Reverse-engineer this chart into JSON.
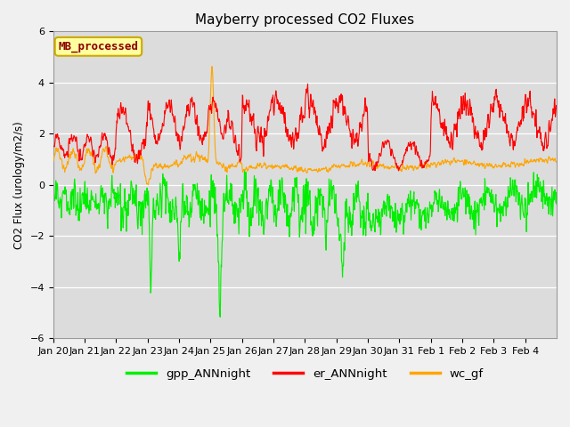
{
  "title": "Mayberry processed CO2 Fluxes",
  "ylabel": "CO2 Flux (urology/m2/s)",
  "ylim": [
    -6,
    6
  ],
  "yticks": [
    -6,
    -4,
    -2,
    0,
    2,
    4,
    6
  ],
  "plot_bg": "#dcdcdc",
  "fig_bg": "#f0f0f0",
  "grid_color": "white",
  "gpp_color": "#00ee00",
  "er_color": "#ff0000",
  "wc_color": "#ffa500",
  "legend_label": "MB_processed",
  "legend_text_color": "#8b0000",
  "legend_box_facecolor": "#ffffa0",
  "legend_box_edgecolor": "#ccaa00",
  "line_width": 0.8,
  "xtick_labels": [
    "Jan 20",
    "Jan 21",
    "Jan 22",
    "Jan 23",
    "Jan 24",
    "Jan 25",
    "Jan 26",
    "Jan 27",
    "Jan 28",
    "Jan 29",
    "Jan 30",
    "Jan 31",
    "Feb 1",
    "Feb 2",
    "Feb 3",
    "Feb 4"
  ],
  "n_points": 1536,
  "days": 16
}
